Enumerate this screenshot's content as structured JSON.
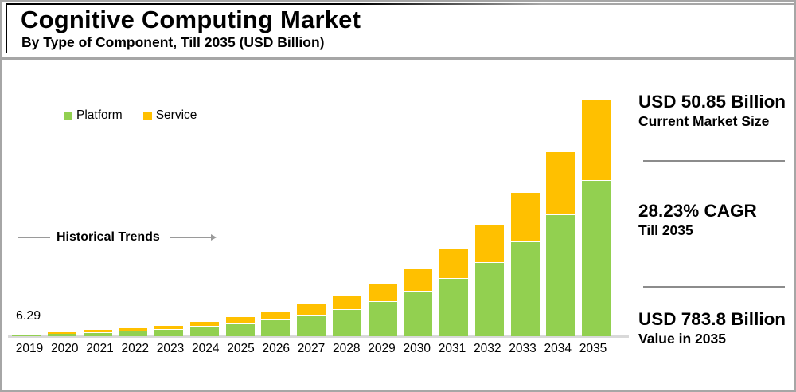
{
  "header": {
    "title": "Cognitive Computing Market",
    "subtitle": "By Type of Component, Till 2035 (USD Billion)"
  },
  "legend": [
    {
      "label": "Platform",
      "color": "#92d050"
    },
    {
      "label": "Service",
      "color": "#ffc000"
    }
  ],
  "annotations": {
    "historical_trends": "Historical Trends"
  },
  "stats": [
    {
      "value": "USD 50.85 Billion",
      "caption": "Current Market Size"
    },
    {
      "value": "28.23% CAGR",
      "caption": "Till 2035"
    },
    {
      "value": "USD 783.8 Billion",
      "caption": "Value in 2035"
    }
  ],
  "chart_data": {
    "type": "bar",
    "stacked": true,
    "title": "Cognitive Computing Market",
    "subtitle": "By Type of Component, Till 2035 (USD Billion)",
    "xlabel": "",
    "ylabel": "USD Billion",
    "ylim": [
      0,
      790
    ],
    "grid": false,
    "legend_position": "top-left",
    "first_bar_label": "6.29",
    "categories": [
      "2019",
      "2020",
      "2021",
      "2022",
      "2023",
      "2024",
      "2025",
      "2026",
      "2027",
      "2028",
      "2029",
      "2030",
      "2031",
      "2032",
      "2033",
      "2034",
      "2035"
    ],
    "series": [
      {
        "name": "Platform",
        "color": "#92d050",
        "values": [
          4.2,
          9.2,
          13.4,
          17.4,
          24.4,
          33.6,
          43.0,
          55.2,
          70.8,
          90.8,
          116.4,
          149.2,
          191.3,
          245.4,
          314.6,
          403.5,
          517.3
        ]
      },
      {
        "name": "Service",
        "color": "#ffc000",
        "values": [
          2.1,
          4.8,
          6.9,
          9.0,
          12.6,
          17.3,
          22.2,
          28.4,
          36.4,
          46.7,
          59.9,
          76.9,
          98.6,
          126.4,
          162.1,
          207.8,
          266.5
        ]
      }
    ],
    "totals": [
      6.29,
      14.0,
      20.3,
      26.4,
      37.0,
      50.85,
      65.2,
      83.6,
      107.2,
      137.5,
      176.3,
      226.1,
      289.9,
      371.8,
      476.7,
      611.3,
      783.8
    ],
    "cagr_2024_2035": "28.23%",
    "value_2024": 50.85,
    "value_2035": 783.8
  }
}
